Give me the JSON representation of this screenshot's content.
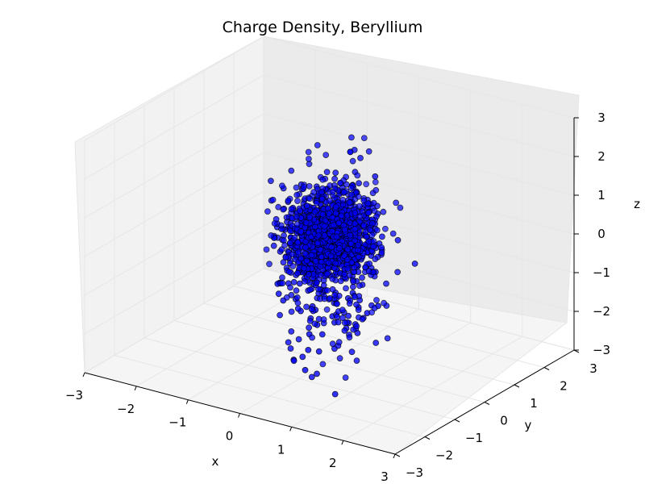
{
  "chart_data": {
    "type": "scatter",
    "projection": "3d",
    "title": "Charge Density, Beryllium",
    "xlabel": "x",
    "ylabel": "y",
    "zlabel": "z",
    "xlim": [
      -3,
      3
    ],
    "ylim": [
      -3,
      3
    ],
    "zlim": [
      -3,
      3
    ],
    "xticks": [
      "−3",
      "−2",
      "−1",
      "0",
      "1",
      "2",
      "3"
    ],
    "yticks": [
      "−3",
      "−2",
      "−1",
      "0",
      "1",
      "2",
      "3"
    ],
    "zticks": [
      "−3",
      "−2",
      "−1",
      "0",
      "1",
      "2",
      "3"
    ],
    "grid": true,
    "marker_color": "#0000ff",
    "marker_edge": "#000000",
    "point_count_shown": 1500,
    "distribution": "points concentrated near origin, spread mainly along z and y, sparse tail toward negative z"
  }
}
